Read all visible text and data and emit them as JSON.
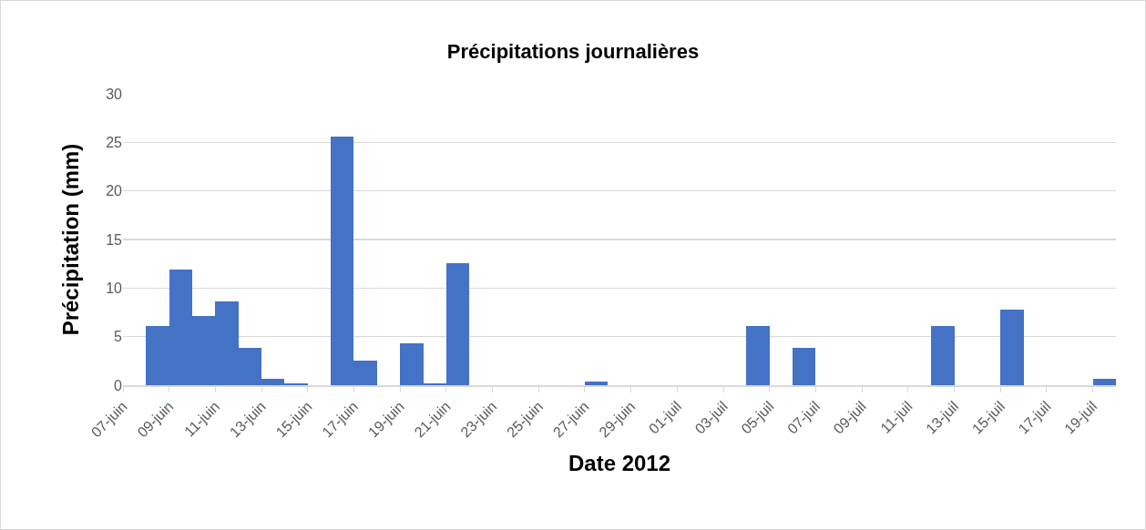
{
  "chart_data": {
    "type": "bar",
    "title": "Précipitations journalières",
    "xlabel": "Date 2012",
    "ylabel": "Précipitation (mm)",
    "categories": [
      "07-juin",
      null,
      "09-juin",
      null,
      "11-juin",
      null,
      "13-juin",
      null,
      "15-juin",
      null,
      "17-juin",
      null,
      "19-juin",
      null,
      "21-juin",
      null,
      "23-juin",
      null,
      "25-juin",
      null,
      "27-juin",
      null,
      "29-juin",
      null,
      "01-juil",
      null,
      "03-juil",
      null,
      "05-juil",
      null,
      "07-juil",
      null,
      "09-juil",
      null,
      "11-juil",
      null,
      "13-juil",
      null,
      "15-juil",
      null,
      "17-juil",
      null,
      "19-juil"
    ],
    "values": [
      0,
      6.1,
      11.9,
      7.1,
      8.6,
      3.8,
      0.7,
      0.2,
      0,
      25.6,
      2.5,
      0,
      4.3,
      0.2,
      12.6,
      0,
      0,
      0,
      0,
      0,
      0.4,
      0,
      0,
      0,
      0,
      0,
      0,
      6.1,
      0,
      3.8,
      0,
      0,
      0,
      0,
      0,
      6.1,
      0,
      0,
      7.8,
      0,
      0,
      0,
      0.7
    ],
    "color": "#4472c4",
    "ylim": [
      0,
      30
    ],
    "yticks": [
      0,
      5,
      10,
      15,
      20,
      25,
      30
    ],
    "grid": "y"
  }
}
